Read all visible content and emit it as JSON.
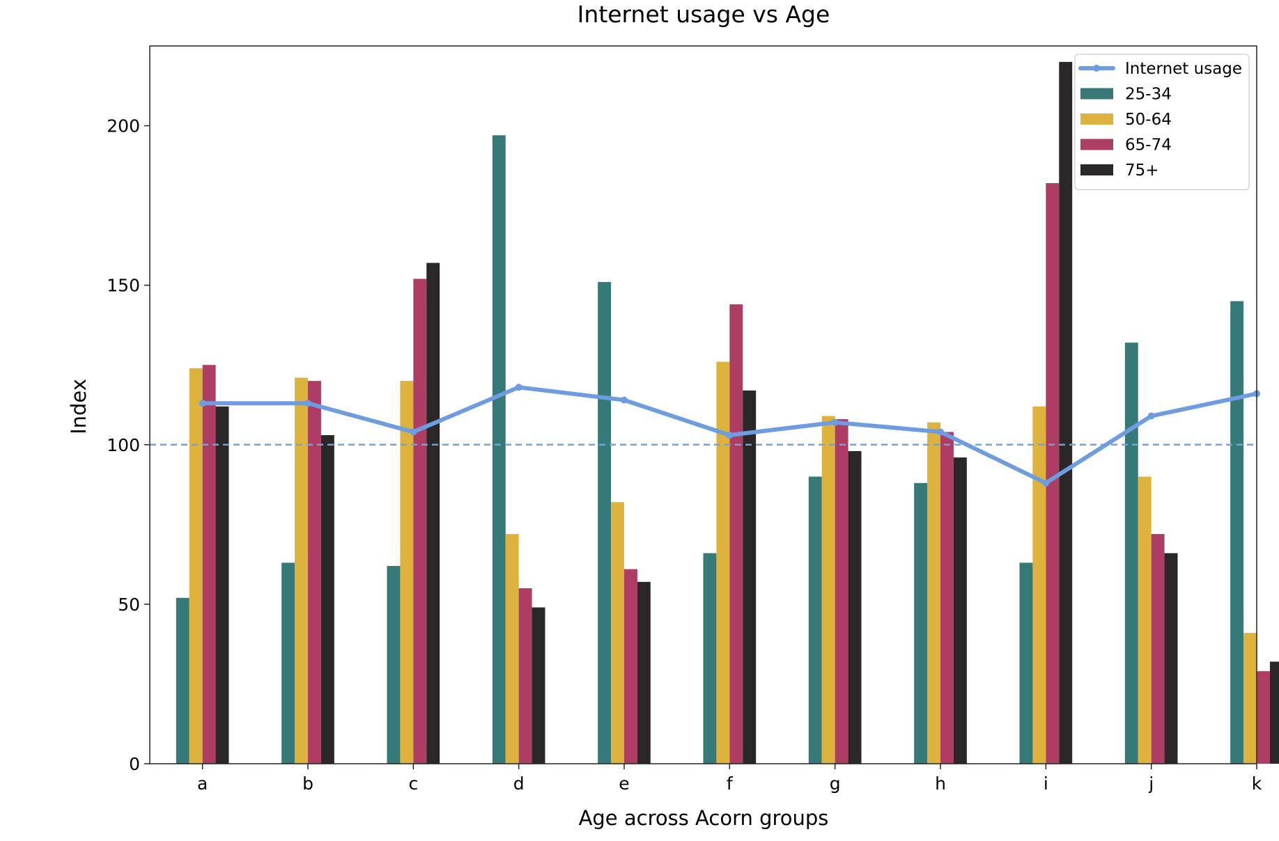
{
  "chart_data": {
    "type": "bar",
    "title": "Internet usage vs Age",
    "xlabel": "Age across Acorn groups",
    "ylabel": "Index",
    "categories": [
      "a",
      "b",
      "c",
      "d",
      "e",
      "f",
      "g",
      "h",
      "i",
      "j",
      "k"
    ],
    "ylim": [
      0,
      225
    ],
    "yticks": [
      0,
      50,
      100,
      150,
      200
    ],
    "grid": false,
    "legend_position": "top-right",
    "reference_line": {
      "y": 100,
      "style": "dashed",
      "color": "#6fa3e0"
    },
    "series": [
      {
        "name": "25-34",
        "type": "bar",
        "color": "#357a78",
        "values": [
          52,
          63,
          62,
          197,
          151,
          66,
          90,
          88,
          63,
          132,
          145
        ]
      },
      {
        "name": "50-64",
        "type": "bar",
        "color": "#ddb23d",
        "values": [
          124,
          121,
          120,
          72,
          82,
          126,
          109,
          107,
          112,
          90,
          41
        ]
      },
      {
        "name": "65-74",
        "type": "bar",
        "color": "#ad3d64",
        "values": [
          125,
          120,
          152,
          55,
          61,
          144,
          108,
          104,
          182,
          72,
          29
        ]
      },
      {
        "name": "75+",
        "type": "bar",
        "color": "#2b2627",
        "values": [
          112,
          103,
          157,
          49,
          57,
          117,
          98,
          96,
          220,
          66,
          32
        ]
      },
      {
        "name": "Internet usage",
        "type": "line",
        "color": "#6e9ce0",
        "values": [
          113,
          113,
          104,
          118,
          114,
          103,
          107,
          104,
          88,
          109,
          116
        ]
      }
    ]
  }
}
